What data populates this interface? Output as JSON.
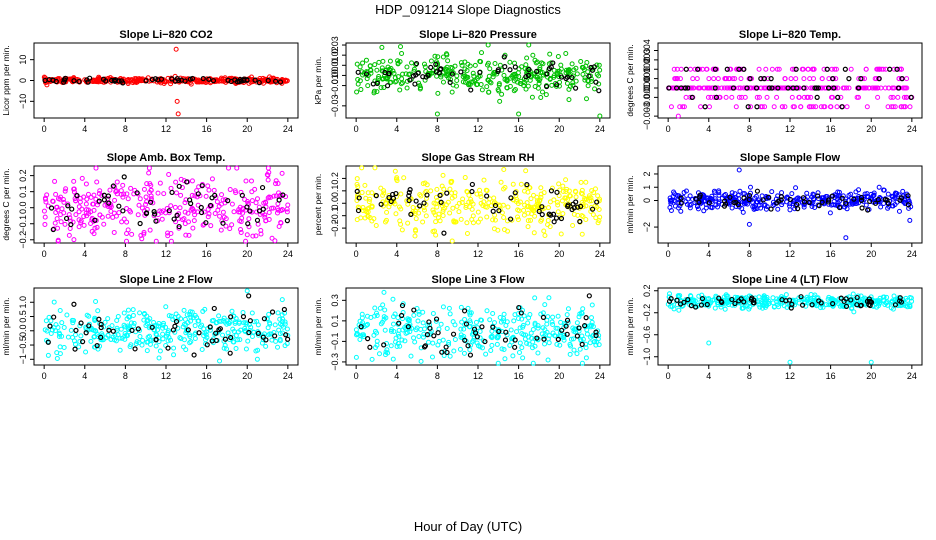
{
  "figure": {
    "title": "HDP_091214  Slope Diagnostics",
    "xlabel": "Hour of Day (UTC)"
  },
  "chart_data": [
    {
      "type": "scatter",
      "title": "Slope Li−820 CO2",
      "ylabel": "Licor ppm per min.",
      "color": "#ff0000",
      "xlim": [
        -1,
        25
      ],
      "ylim": [
        -18,
        18
      ],
      "xticks": [
        0,
        4,
        8,
        12,
        16,
        20,
        24
      ],
      "yticks": [
        {
          "v": -10,
          "l": "−10"
        },
        {
          "v": 0,
          "l": "0"
        },
        {
          "v": 10,
          "l": "10"
        }
      ],
      "spread": 0.6,
      "outliers": [
        [
          13,
          15
        ],
        [
          13.2,
          -16
        ],
        [
          13.1,
          -10
        ],
        [
          12.9,
          2
        ]
      ]
    },
    {
      "type": "scatter",
      "title": "Slope Li−820 Pressure",
      "ylabel": "kPa per min.",
      "color": "#00c000",
      "xlim": [
        -1,
        25
      ],
      "ylim": [
        -0.042,
        0.032
      ],
      "xticks": [
        0,
        4,
        8,
        12,
        16,
        20,
        24
      ],
      "yticks": [
        {
          "v": -0.03,
          "l": "−0.03"
        },
        {
          "v": -0.01,
          "l": "−0.01"
        },
        {
          "v": 0,
          "l": "0.00"
        },
        {
          "v": 0.01,
          "l": "0.01"
        },
        {
          "v": 0.02,
          "l": "0.02"
        },
        {
          "v": 0.03,
          "l": "0.03"
        }
      ],
      "spread": 0.009,
      "outliers": [
        [
          8,
          -0.038
        ],
        [
          16,
          -0.038
        ],
        [
          24,
          -0.04
        ],
        [
          13,
          0.03
        ],
        [
          17,
          0.03
        ]
      ]
    },
    {
      "type": "scatter",
      "title": "Slope Li−820 Temp.",
      "ylabel": "degrees C per min.",
      "color": "#ff00ff",
      "xlim": [
        -1,
        25
      ],
      "ylim": [
        -0.0032,
        0.0048
      ],
      "xticks": [
        0,
        4,
        8,
        12,
        16,
        20,
        24
      ],
      "yticks": [
        {
          "v": -0.003,
          "l": "−0.003"
        },
        {
          "v": -0.001,
          "l": "−0.001"
        },
        {
          "v": 0,
          "l": "0.000"
        },
        {
          "v": 0.001,
          "l": "0.001"
        },
        {
          "v": 0.002,
          "l": "0.002"
        },
        {
          "v": 0.003,
          "l": "0.003"
        },
        {
          "v": 0.004,
          "l": "0.004"
        }
      ],
      "discrete": [
        -0.002,
        -0.001,
        0,
        0,
        0,
        0,
        0.001,
        0.002
      ],
      "outliers": [
        [
          1,
          -0.003
        ],
        [
          11.5,
          -0.002
        ]
      ]
    },
    {
      "type": "scatter",
      "title": "Slope Amb. Box Temp.",
      "ylabel": "degrees C per min.",
      "color": "#ff00ff",
      "xlim": [
        -1,
        25
      ],
      "ylim": [
        -0.22,
        0.26
      ],
      "xticks": [
        0,
        4,
        8,
        12,
        16,
        20,
        24
      ],
      "yticks": [
        {
          "v": -0.2,
          "l": "−0.2"
        },
        {
          "v": -0.1,
          "l": "−0.1"
        },
        {
          "v": 0,
          "l": "0.0"
        },
        {
          "v": 0.1,
          "l": "0.1"
        },
        {
          "v": 0.2,
          "l": "0.2"
        }
      ],
      "spread": 0.1,
      "outliers": []
    },
    {
      "type": "scatter",
      "title": "Slope Gas Stream RH",
      "ylabel": "percent per min.",
      "color": "#ffff00",
      "xlim": [
        -1,
        25
      ],
      "ylim": [
        -0.32,
        0.3
      ],
      "xticks": [
        0,
        4,
        8,
        12,
        16,
        20,
        24
      ],
      "yticks": [
        {
          "v": -0.2,
          "l": "−0.2"
        },
        {
          "v": -0.1,
          "l": "−0.1"
        },
        {
          "v": 0,
          "l": "0.0"
        },
        {
          "v": 0.1,
          "l": "0.1"
        },
        {
          "v": 0.2,
          "l": "0.2"
        }
      ],
      "spread": 0.1,
      "outliers": []
    },
    {
      "type": "scatter",
      "title": "Slope Sample Flow",
      "ylabel": "ml/min per min.",
      "color": "#0000ff",
      "xlim": [
        -1,
        25
      ],
      "ylim": [
        -3.2,
        2.6
      ],
      "xticks": [
        0,
        4,
        8,
        12,
        16,
        20,
        24
      ],
      "yticks": [
        {
          "v": -2,
          "l": "−2"
        },
        {
          "v": 0,
          "l": "0"
        },
        {
          "v": 1,
          "l": "1"
        },
        {
          "v": 2,
          "l": "2"
        }
      ],
      "spread": 0.35,
      "outliers": [
        [
          17.5,
          -2.8
        ],
        [
          7,
          2.3
        ],
        [
          23.8,
          -1.5
        ],
        [
          8,
          -1.8
        ]
      ]
    },
    {
      "type": "scatter",
      "title": "Slope Line 2 Flow",
      "ylabel": "ml/min per min.",
      "color": "#00ffff",
      "xlim": [
        -1,
        25
      ],
      "ylim": [
        -1.2,
        1.5
      ],
      "xticks": [
        0,
        4,
        8,
        12,
        16,
        20,
        24
      ],
      "yticks": [
        {
          "v": -1,
          "l": "−1"
        },
        {
          "v": -0.5,
          "l": "−0.5"
        },
        {
          "v": 0,
          "l": "0.0"
        },
        {
          "v": 0.5,
          "l": "0.5"
        },
        {
          "v": 1,
          "l": "1.0"
        }
      ],
      "spread": 0.4,
      "outliers": [
        [
          20,
          1.4
        ],
        [
          21,
          -1.0
        ]
      ]
    },
    {
      "type": "scatter",
      "title": "Slope Line 3 Flow",
      "ylabel": "ml/min per min.",
      "color": "#00ffff",
      "xlim": [
        -1,
        25
      ],
      "ylim": [
        -0.33,
        0.42
      ],
      "xticks": [
        0,
        4,
        8,
        12,
        16,
        20,
        24
      ],
      "yticks": [
        {
          "v": -0.3,
          "l": "−0.3"
        },
        {
          "v": -0.1,
          "l": "−0.1"
        },
        {
          "v": 0.1,
          "l": "0.1"
        },
        {
          "v": 0.3,
          "l": "0.3"
        }
      ],
      "spread": 0.13,
      "outliers": []
    },
    {
      "type": "scatter",
      "title": "Slope Line 4 (LT) Flow",
      "ylabel": "ml/min per min.",
      "color": "#00ffff",
      "xlim": [
        -1,
        25
      ],
      "ylim": [
        -1.15,
        0.25
      ],
      "xticks": [
        0,
        4,
        8,
        12,
        16,
        20,
        24
      ],
      "yticks": [
        {
          "v": -1,
          "l": "−1.0"
        },
        {
          "v": -0.6,
          "l": "−0.6"
        },
        {
          "v": -0.2,
          "l": "−0.2"
        },
        {
          "v": 0.2,
          "l": "0.2"
        }
      ],
      "spread": 0.06,
      "outliers": [
        [
          4,
          -0.75
        ],
        [
          12,
          -1.1
        ],
        [
          20,
          -1.1
        ]
      ]
    }
  ]
}
